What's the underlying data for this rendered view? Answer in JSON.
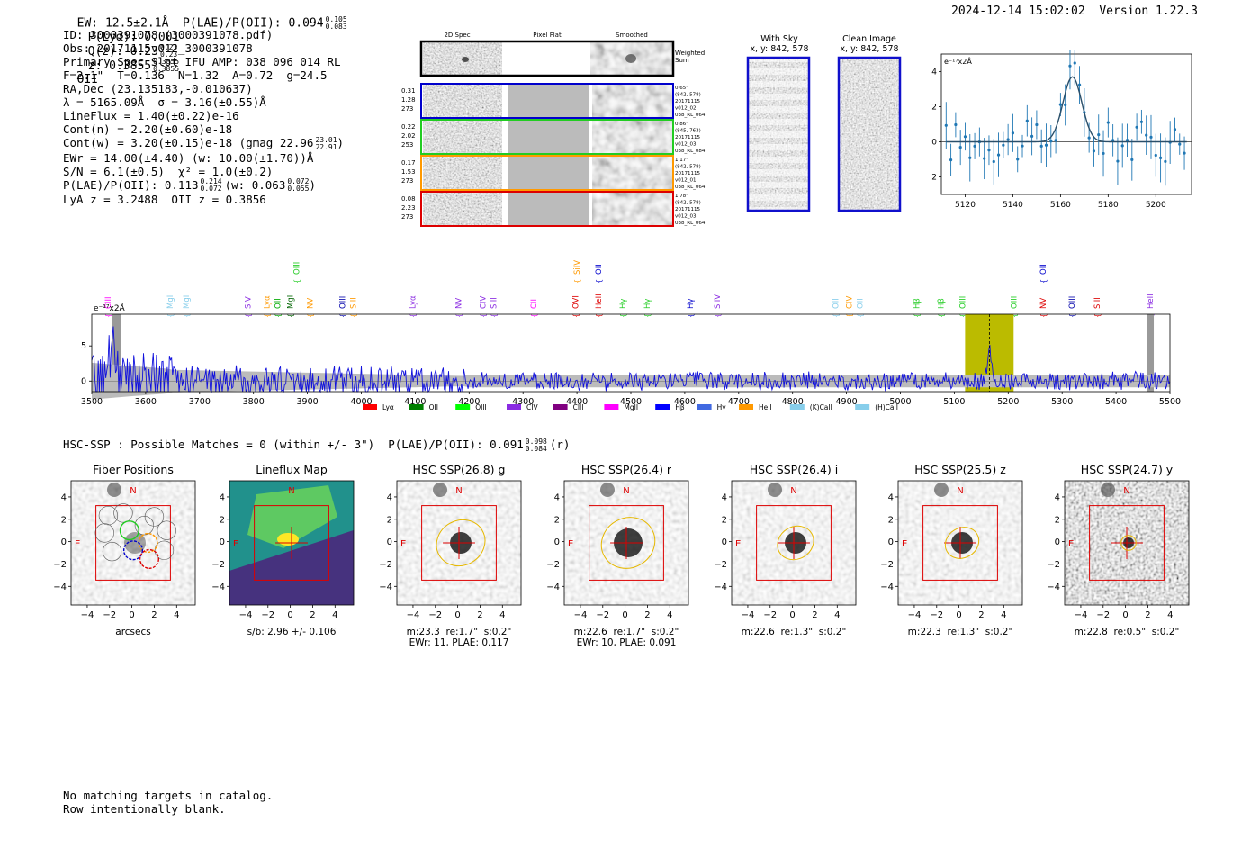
{
  "header": {
    "ew_line": "EW: 12.5±2.1Å  P(LAE)/P(OII): 0.094",
    "ew_sup": "0.105",
    "ew_sub": "0.083",
    "plya": "P(Lyα): 0.001",
    "qz": "Q(z): 0.23",
    "qz_sup": "0.23",
    "qz_sub": "0.23",
    "z": "z: 0.3855",
    "z_sup": "0.3855",
    "z_sub": "0.3855",
    "z_tag": "OII",
    "datetime": "2024-12-14 15:02:02  Version 1.22.3"
  },
  "info": {
    "l1": "ID: 3000391078 (3000391078.pdf)",
    "l2": "Obs: 20171115v012_3000391078",
    "l3": "Primary Spec_Slot_IFU_AMP: 038_096_014_RL",
    "l4": "F=2.1\"  T=0.136  N=1.32  A=0.72  g=24.5",
    "l5": "RA,Dec (23.135183,-0.010637)",
    "l6": "λ = 5165.09Å  σ = 3.16(±0.55)Å",
    "l7": "LineFlux = 1.40(±0.22)e-16",
    "l8": "Cont(n) = 2.20(±0.60)e-18",
    "l9": "Cont(w) = 3.20(±0.15)e-18 (gmag 22.96",
    "l9_sup": "23.01",
    "l9_sub": "22.91",
    "l10": "EWr = 14.00(±4.40) (w: 10.00(±1.70))Å",
    "l11": "S/N = 6.1(±0.5)  χ² = 1.0(±0.2)",
    "l12": "P(LAE)/P(OII): 0.113",
    "l12_sup": "0.214",
    "l12_sub": "0.072",
    "l12b": "(w: 0.063",
    "l12b_sup": "0.072",
    "l12b_sub": "0.055",
    "l13": "LyA z = 3.2488  OII z = 0.3856"
  },
  "twod": {
    "col_titles": [
      "2D Spec",
      "Pixel Flat",
      "Smoothed"
    ],
    "weighted_label": "Weighted\nSum",
    "rows": [
      {
        "left": [
          "0.31",
          "1.28",
          "273"
        ],
        "right": [
          "0.65\"",
          "(842, 578)",
          "20171115",
          "v012_02",
          "038_RL_064"
        ],
        "color": "#0000cc"
      },
      {
        "left": [
          "0.22",
          "2.02",
          "253"
        ],
        "right": [
          "0.86\"",
          "(845, 763)",
          "20171115",
          "v012_03",
          "038_RL_084"
        ],
        "color": "#22cc22"
      },
      {
        "left": [
          "0.17",
          "1.53",
          "273"
        ],
        "right": [
          "1.17\"",
          "(842, 578)",
          "20171115",
          "v012_01",
          "038_RL_064"
        ],
        "color": "#ff9900"
      },
      {
        "left": [
          "0.08",
          "2.23",
          "273"
        ],
        "right": [
          "1.78\"",
          "(842, 578)",
          "20171115",
          "v012_03",
          "038_RL_064"
        ],
        "color": "#dd0000"
      }
    ]
  },
  "sky": {
    "with_sky_title": "With Sky",
    "with_sky_xy": "x, y: 842, 578",
    "clean_title": "Clean Image",
    "clean_xy": "x, y: 842, 578"
  },
  "zoom_plot": {
    "unit": "e⁻¹⁷x2Å",
    "xticks": [
      "5120",
      "5140",
      "5160",
      "5180",
      "5200"
    ],
    "yticks": [
      "4",
      "2",
      "0",
      "-2"
    ]
  },
  "spectrum": {
    "unit": "e⁻¹⁷x2Å",
    "xticks": [
      "3500",
      "3600",
      "3700",
      "3800",
      "3900",
      "4000",
      "4100",
      "4200",
      "4300",
      "4400",
      "4500",
      "4600",
      "4700",
      "4800",
      "4900",
      "5000",
      "5100",
      "5200",
      "5300",
      "5400",
      "5500"
    ],
    "yticks": [
      "5",
      "0"
    ],
    "lines": [
      {
        "label": "CIII",
        "wave": 3530,
        "color": "#ff00ff",
        "tier": 2
      },
      {
        "label": "MgII",
        "wave": 3645,
        "color": "#87ceeb",
        "tier": 2
      },
      {
        "label": "MgII",
        "wave": 3675,
        "color": "#87ceeb",
        "tier": 2
      },
      {
        "label": "SIV",
        "wave": 3790,
        "color": "#8a2be2",
        "tier": 2
      },
      {
        "label": "Lyα",
        "wave": 3825,
        "color": "#ff9900",
        "tier": 2
      },
      {
        "label": "OII",
        "wave": 3845,
        "color": "#00aa00",
        "tier": 2
      },
      {
        "label": "MgII",
        "wave": 3868,
        "color": "#006400",
        "tier": 2
      },
      {
        "label": "OIII",
        "wave": 3880,
        "color": "#22cc22",
        "tier": 0
      },
      {
        "label": "NV",
        "wave": 3905,
        "color": "#ff9900",
        "tier": 2
      },
      {
        "label": "OIII",
        "wave": 3965,
        "color": "#0000aa",
        "tier": 2
      },
      {
        "label": "SiII",
        "wave": 3985,
        "color": "#ff9900",
        "tier": 2
      },
      {
        "label": "Lyα",
        "wave": 4095,
        "color": "#8a2be2",
        "tier": 2
      },
      {
        "label": "NV",
        "wave": 4180,
        "color": "#8a2be2",
        "tier": 2
      },
      {
        "label": "CIV",
        "wave": 4225,
        "color": "#8a2be2",
        "tier": 2
      },
      {
        "label": "SiII",
        "wave": 4245,
        "color": "#8a2be2",
        "tier": 2
      },
      {
        "label": "CII",
        "wave": 4320,
        "color": "#ff00ff",
        "tier": 2
      },
      {
        "label": "SiIV",
        "wave": 4400,
        "color": "#ff9900",
        "tier": 0
      },
      {
        "label": "OII",
        "wave": 4440,
        "color": "#0000cc",
        "tier": 0
      },
      {
        "label": "OVI",
        "wave": 4397,
        "color": "#dd0000",
        "tier": 2
      },
      {
        "label": "HeII",
        "wave": 4440,
        "color": "#dd0000",
        "tier": 2
      },
      {
        "label": "Hγ",
        "wave": 4485,
        "color": "#22cc22",
        "tier": 2
      },
      {
        "label": "Hγ",
        "wave": 4530,
        "color": "#22cc22",
        "tier": 2
      },
      {
        "label": "Hγ",
        "wave": 4610,
        "color": "#0000cc",
        "tier": 2
      },
      {
        "label": "SiIV",
        "wave": 4660,
        "color": "#8a2be2",
        "tier": 2
      },
      {
        "label": "OII",
        "wave": 4880,
        "color": "#87ceeb",
        "tier": 2
      },
      {
        "label": "CIV",
        "wave": 4905,
        "color": "#ff9900",
        "tier": 2
      },
      {
        "label": "OII",
        "wave": 4925,
        "color": "#87ceeb",
        "tier": 2
      },
      {
        "label": "Hβ",
        "wave": 5030,
        "color": "#22cc22",
        "tier": 2
      },
      {
        "label": "Hβ",
        "wave": 5075,
        "color": "#22cc22",
        "tier": 2
      },
      {
        "label": "OIII",
        "wave": 5115,
        "color": "#22cc22",
        "tier": 2
      },
      {
        "label": "OIII",
        "wave": 5210,
        "color": "#22cc22",
        "tier": 2
      },
      {
        "label": "NV",
        "wave": 5265,
        "color": "#dd0000",
        "tier": 2
      },
      {
        "label": "OII",
        "wave": 5265,
        "color": "#0000cc",
        "tier": 0
      },
      {
        "label": "OIII",
        "wave": 5318,
        "color": "#0000aa",
        "tier": 2
      },
      {
        "label": "SiII",
        "wave": 5365,
        "color": "#dd0000",
        "tier": 2
      },
      {
        "label": "HeII",
        "wave": 5463,
        "color": "#8a2be2",
        "tier": 2
      }
    ],
    "legend": [
      {
        "label": "Lyα",
        "color": "#ff0000"
      },
      {
        "label": "OII",
        "color": "#008000"
      },
      {
        "label": "OIII",
        "color": "#00ff00"
      },
      {
        "label": "CIV",
        "color": "#8a2be2"
      },
      {
        "label": "CIII",
        "color": "#800080"
      },
      {
        "label": "MgII",
        "color": "#ff00ff"
      },
      {
        "label": "Hβ",
        "color": "#0000ff"
      },
      {
        "label": "Hγ",
        "color": "#4169e1"
      },
      {
        "label": "HeII",
        "color": "#ff9900"
      },
      {
        "label": "(K)CaII",
        "color": "#87ceeb"
      },
      {
        "label": "(H)CaII",
        "color": "#87ceeb"
      }
    ]
  },
  "chart_data": {
    "type": "line",
    "title": "",
    "xlabel": "",
    "ylabel": "e⁻¹⁷x2Å",
    "xlim": [
      3500,
      5500
    ],
    "ylim": [
      -1.5,
      9.5
    ],
    "highlight_region": [
      5120,
      5210
    ],
    "emission_line_wave": 5165.09,
    "zoom_fit": {
      "center": 5165,
      "sigma": 3.16,
      "peak": 3.7,
      "xlim": [
        5110,
        5215
      ],
      "ylim": [
        -3,
        5
      ]
    }
  },
  "hsc": {
    "header": "HSC-SSP : Possible Matches = 0 (within +/- 3\")  P(LAE)/P(OII): 0.091",
    "h_sup": "0.098",
    "h_sub": "0.084",
    "h_tail": "(r)",
    "panels": [
      {
        "title": "Fiber Positions",
        "caption": "arcsecs"
      },
      {
        "title": "Lineflux Map",
        "caption": "s/b: 2.96 +/- 0.106"
      },
      {
        "title": "HSC SSP(26.8) g",
        "caption": "m:23.3  re:1.7\"  s:0.2\"\nEWr: 11, PLAE: 0.117"
      },
      {
        "title": "HSC SSP(26.4) r",
        "caption": "m:22.6  re:1.7\"  s:0.2\"\nEWr: 10, PLAE: 0.091"
      },
      {
        "title": "HSC SSP(26.4) i",
        "caption": "m:22.6  re:1.3\"  s:0.2\""
      },
      {
        "title": "HSC SSP(25.5) z",
        "caption": "m:22.3  re:1.3\"  s:0.2\""
      },
      {
        "title": "HSC SSP(24.7) y",
        "caption": "m:22.8  re:0.5\"  s:0.2\""
      }
    ],
    "xticks": [
      "−4",
      "−2",
      "0",
      "2",
      "4"
    ],
    "yticks": [
      "4",
      "2",
      "0",
      "−2",
      "−4"
    ],
    "n_label": "N",
    "e_label": "E"
  },
  "footer": {
    "l1": "No matching targets in catalog.",
    "l2": "Row intentionally blank."
  }
}
